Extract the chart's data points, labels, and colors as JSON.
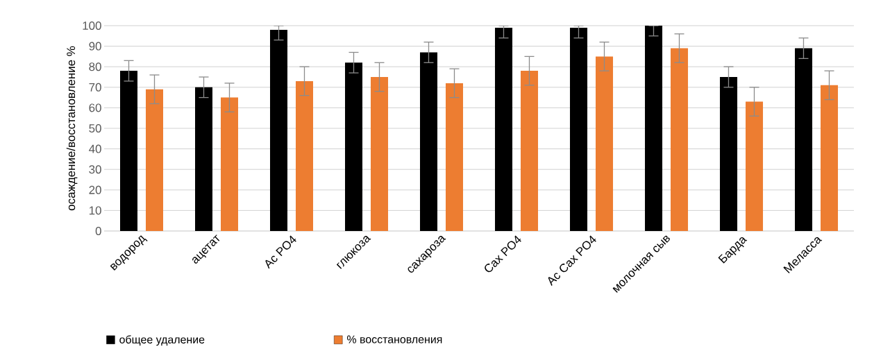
{
  "chart_data": {
    "type": "bar",
    "ylabel": "осаждение/восстановление %",
    "categories": [
      "водород",
      "ацетат",
      "Ac PO4",
      "глюкоза",
      "сахароза",
      "Cax PO4",
      "Ac Cax PO4",
      "молочная сыв",
      "Барда",
      "Меласса"
    ],
    "series": [
      {
        "name": "общее удаление",
        "color": "#000000",
        "values": [
          78,
          70,
          98,
          82,
          87,
          99,
          99,
          100,
          75,
          89
        ],
        "errors": [
          5,
          5,
          [
            93,
            100
          ],
          5,
          5,
          [
            94,
            100
          ],
          [
            94,
            100
          ],
          [
            95,
            100
          ],
          5,
          5
        ]
      },
      {
        "name": "% восстановления",
        "color": "#ed7d31",
        "values": [
          69,
          65,
          73,
          75,
          72,
          78,
          85,
          89,
          63,
          71
        ],
        "errors": [
          7,
          7,
          7,
          7,
          7,
          7,
          7,
          7,
          7,
          7
        ]
      }
    ],
    "ylim": [
      0,
      100
    ],
    "yticks": [
      0,
      10,
      20,
      30,
      40,
      50,
      60,
      70,
      80,
      90,
      100
    ],
    "grid": "y",
    "legend": "bottom"
  }
}
